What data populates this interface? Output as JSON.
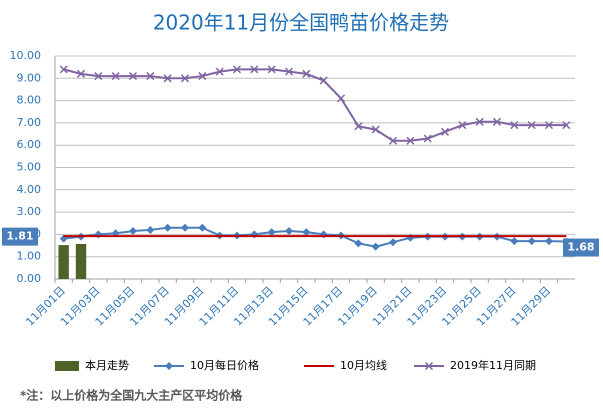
{
  "chart_data": {
    "type": "line",
    "title": "2020年11月份全国鸭苗价格走势",
    "categories": [
      "11月01日",
      null,
      "11月03日",
      null,
      "11月05日",
      null,
      "11月07日",
      null,
      "11月09日",
      null,
      "11月11日",
      null,
      "11月13日",
      null,
      "11月15日",
      null,
      "11月17日",
      null,
      "11月19日",
      null,
      "11月21日",
      null,
      "11月23日",
      null,
      "11月25日",
      null,
      "11月27日",
      null,
      "11月29日",
      null
    ],
    "series": [
      {
        "name": "本月走势",
        "type": "bar",
        "color": "#4f6228",
        "values": [
          1.52,
          1.57,
          null,
          null,
          null,
          null,
          null,
          null,
          null,
          null,
          null,
          null,
          null,
          null,
          null,
          null,
          null,
          null,
          null,
          null,
          null,
          null,
          null,
          null,
          null,
          null,
          null,
          null,
          null,
          null
        ]
      },
      {
        "name": "10月每日价格",
        "type": "line",
        "marker": "diamond",
        "color": "#4a7ebb",
        "values": [
          1.81,
          1.9,
          2.0,
          2.05,
          2.15,
          2.2,
          2.3,
          2.3,
          2.3,
          1.95,
          1.95,
          2.0,
          2.1,
          2.15,
          2.1,
          2.0,
          1.95,
          1.6,
          1.45,
          1.65,
          1.85,
          1.9,
          1.9,
          1.9,
          1.9,
          1.9,
          1.7,
          1.7,
          1.7,
          1.68
        ],
        "value_labels": [
          "1.81",
          null,
          null,
          null,
          null,
          null,
          null,
          null,
          null,
          null,
          null,
          null,
          null,
          null,
          null,
          null,
          null,
          null,
          null,
          null,
          null,
          null,
          null,
          null,
          null,
          null,
          null,
          null,
          null,
          "1.68"
        ]
      },
      {
        "name": "10月均线",
        "type": "line",
        "marker": "none",
        "color": "#c00000",
        "values": [
          1.92,
          1.92,
          1.92,
          1.92,
          1.92,
          1.92,
          1.92,
          1.92,
          1.92,
          1.92,
          1.92,
          1.92,
          1.92,
          1.92,
          1.92,
          1.92,
          1.92,
          1.92,
          1.92,
          1.92,
          1.92,
          1.92,
          1.92,
          1.92,
          1.92,
          1.92,
          1.92,
          1.92,
          1.92,
          1.92
        ]
      },
      {
        "name": "2019年11月同期",
        "type": "line",
        "marker": "x",
        "color": "#8064a2",
        "values": [
          9.4,
          9.2,
          9.1,
          9.1,
          9.1,
          9.1,
          9.0,
          9.0,
          9.1,
          9.3,
          9.4,
          9.4,
          9.4,
          9.3,
          9.2,
          8.9,
          8.1,
          6.85,
          6.7,
          6.2,
          6.2,
          6.3,
          6.6,
          6.9,
          7.05,
          7.05,
          6.9,
          6.9,
          6.9,
          6.9
        ]
      }
    ],
    "ylim": [
      0,
      10
    ],
    "yticks": [
      {
        "value": 0,
        "label": "0.00"
      },
      {
        "value": 1,
        "label": "1.00"
      },
      {
        "value": 2,
        "label": "2.00"
      },
      {
        "value": 3,
        "label": "3.00"
      },
      {
        "value": 4,
        "label": "4.00"
      },
      {
        "value": 5,
        "label": "5.00"
      },
      {
        "value": 6,
        "label": "6.00"
      },
      {
        "value": 7,
        "label": "7.00"
      },
      {
        "value": 8,
        "label": "8.00"
      },
      {
        "value": 9,
        "label": "9.00"
      },
      {
        "value": 10,
        "label": "10.00"
      }
    ],
    "grid": true,
    "legend": "bottom",
    "note": "*注：以上价格为全国九大主产区平均价格"
  }
}
